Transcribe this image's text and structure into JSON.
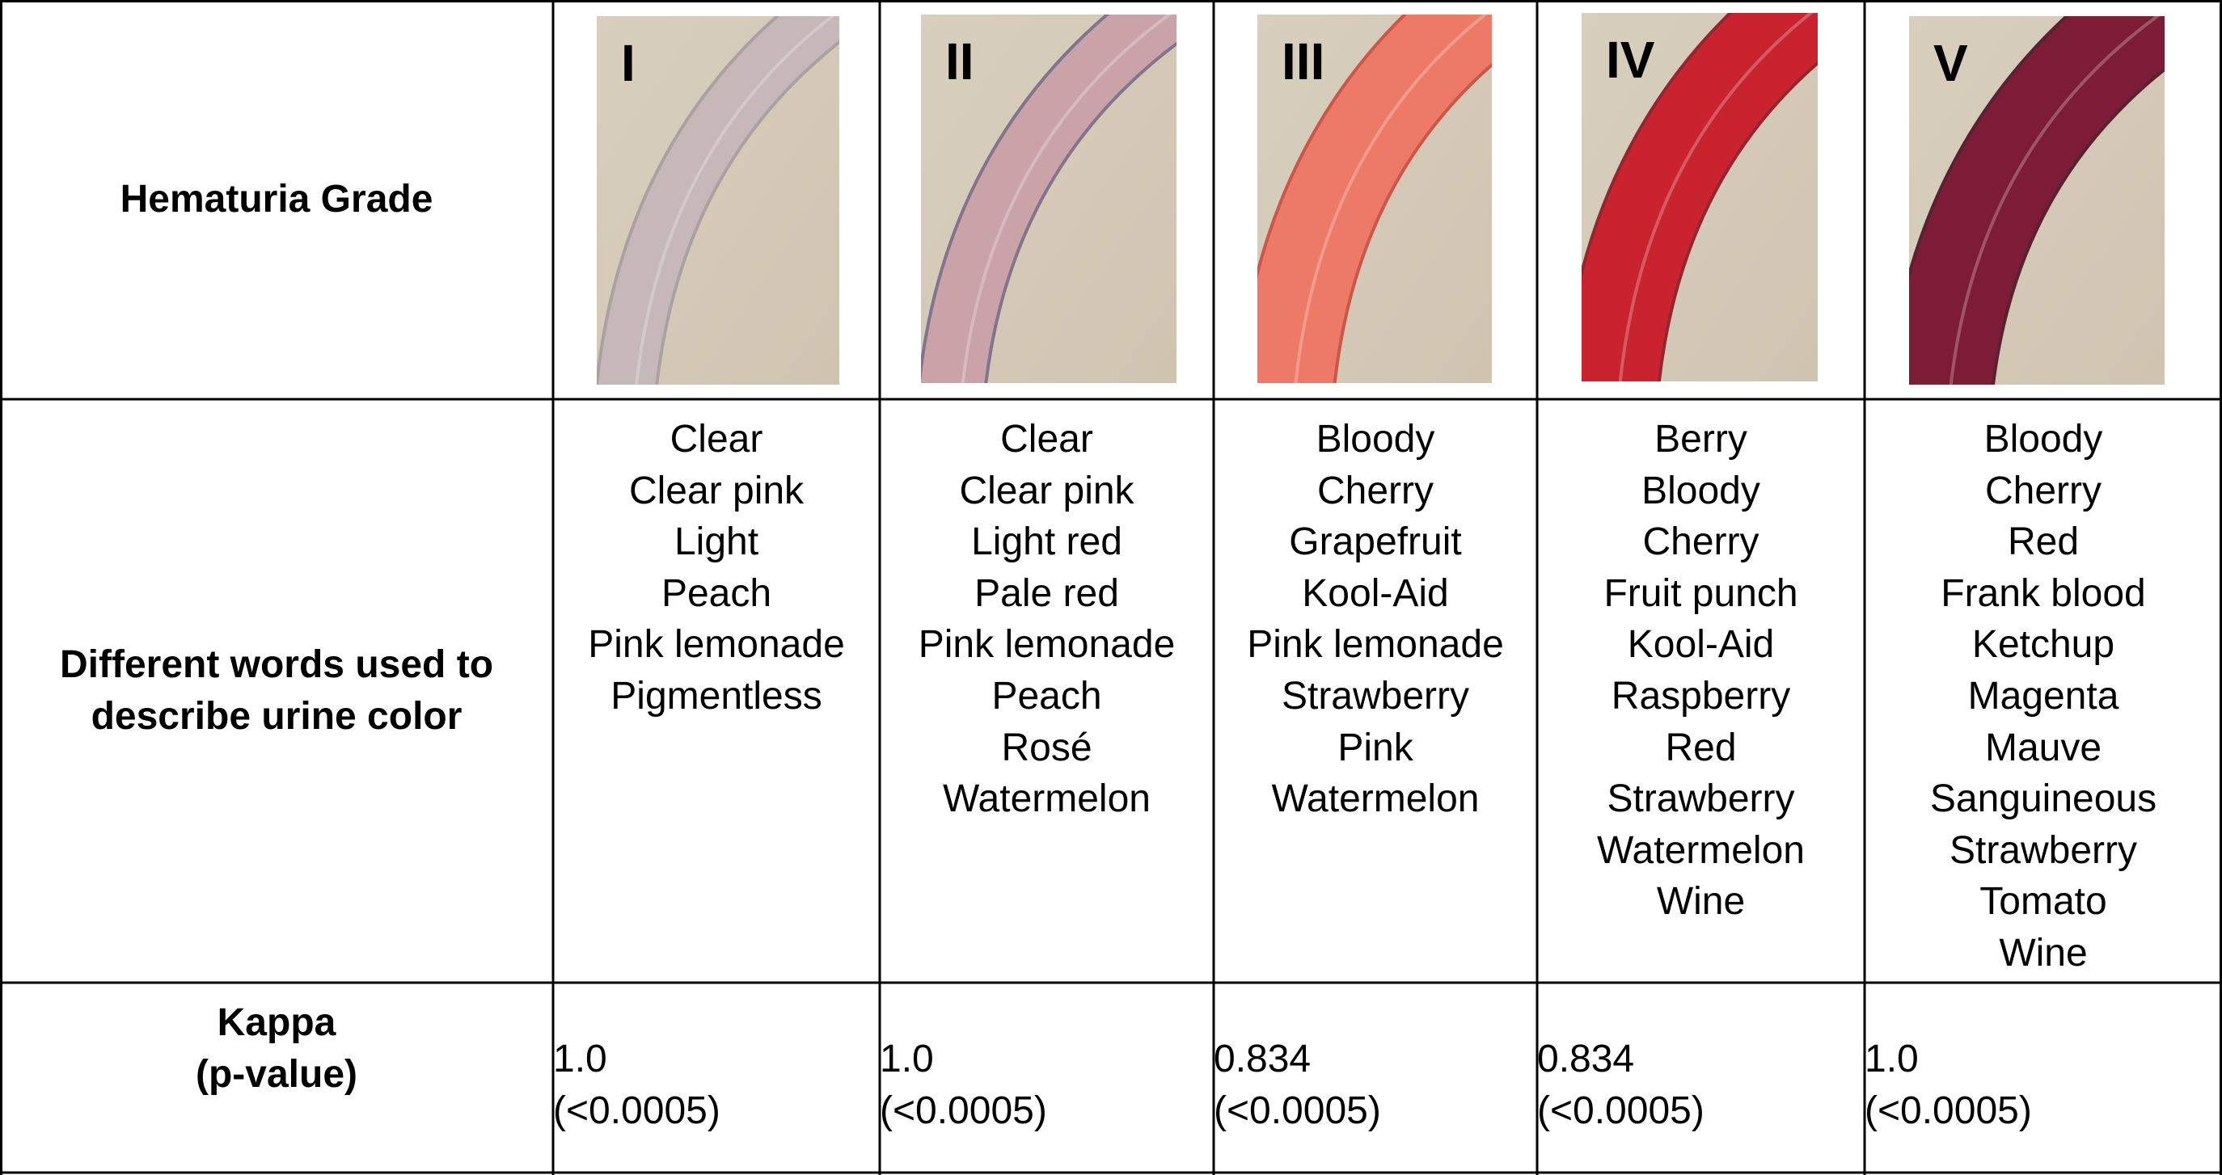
{
  "table": {
    "row_headers": {
      "grade": "Hematuria Grade",
      "words_line1": "Different words used to",
      "words_line2": "describe urine color",
      "kappa_line1": "Kappa",
      "kappa_line2": "(p-value)"
    },
    "columns": [
      {
        "grade": "I",
        "tube_color": "#c6b7b8",
        "tube_shade": "#a69c9e",
        "words": [
          "Clear",
          "Clear pink",
          "Light",
          "Peach",
          "Pink lemonade",
          "Pigmentless"
        ],
        "kappa": "1.0",
        "p_value": "(<0.0005)"
      },
      {
        "grade": "II",
        "tube_color": "#c9a3a8",
        "tube_shade": "#7a6a88",
        "words": [
          "Clear",
          "Clear pink",
          "Light red",
          "Pale red",
          "Pink lemonade",
          "Peach",
          "Rosé",
          "Watermelon"
        ],
        "kappa": "1.0",
        "p_value": "(<0.0005)"
      },
      {
        "grade": "III",
        "tube_color": "#ec7a66",
        "tube_shade": "#c94a3e",
        "words": [
          "Bloody",
          "Cherry",
          "Grapefruit",
          "Kool-Aid",
          "Pink lemonade",
          "Strawberry",
          "Pink",
          "Watermelon"
        ],
        "kappa": "0.834",
        "p_value": "(<0.0005)"
      },
      {
        "grade": "IV",
        "tube_color": "#c8232e",
        "tube_shade": "#8e1420",
        "words": [
          "Berry",
          "Bloody",
          "Cherry",
          "Fruit punch",
          "Kool-Aid",
          "Raspberry",
          "Red",
          "Strawberry",
          "Watermelon",
          "Wine"
        ],
        "kappa": "0.834",
        "p_value": "(<0.0005)"
      },
      {
        "grade": "V",
        "tube_color": "#7c1c36",
        "tube_shade": "#4c0f22",
        "words": [
          "Bloody",
          "Cherry",
          "Red",
          "Frank blood",
          "Ketchup",
          "Magenta",
          "Mauve",
          "Sanguineous",
          "Strawberry",
          "Tomato",
          "Wine"
        ],
        "kappa": "1.0",
        "p_value": "(<0.0005)"
      }
    ]
  },
  "colors": {
    "background": "#ffffff",
    "grid": "#000000",
    "photo_background": "#d8cfbd"
  }
}
